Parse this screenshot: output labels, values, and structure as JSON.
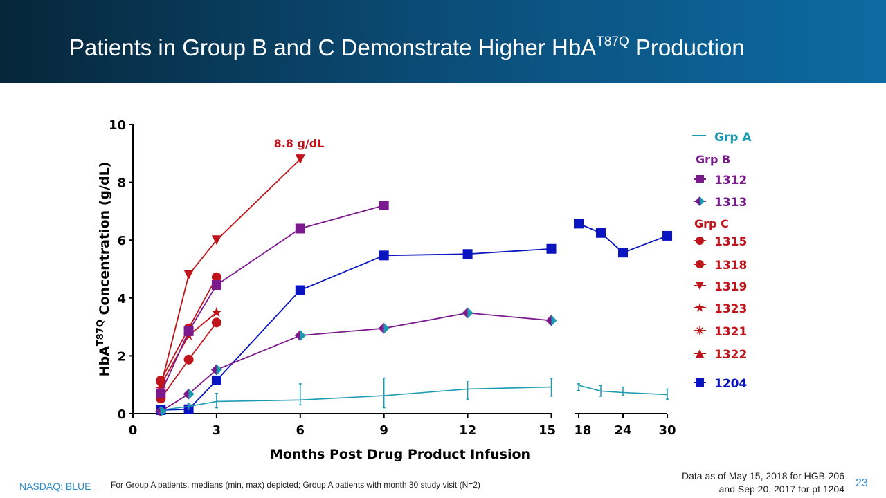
{
  "header": {
    "title_pre": "Patients in Group B and C Demonstrate Higher HbA",
    "title_sup": "T87Q",
    "title_post": " Production"
  },
  "footer": {
    "ticker": "NASDAQ: BLUE",
    "note": "For Group A patients, medians (min, max) depicted; Group A patients with month 30 study visit (N=2)",
    "data_line1": "Data as of May 15, 2018 for HGB-206",
    "data_line2": "and Sep 20, 2017 for pt 1204",
    "page": "23"
  },
  "chart_data": {
    "type": "line",
    "xlabel": "Months Post Drug Product Infusion",
    "ylabel_pre": "HbA",
    "ylabel_sup": "T87Q",
    "ylabel_post": " Concentration (g/dL)",
    "ylim": [
      0,
      10
    ],
    "yticks": [
      0,
      2,
      4,
      6,
      8,
      10
    ],
    "xticks": [
      0,
      3,
      6,
      9,
      12,
      15,
      18,
      24,
      30
    ],
    "x_axis_break": [
      15,
      18
    ],
    "annotation": {
      "text": "8.8 g/dL",
      "x": 6,
      "y": 8.8
    },
    "legend_groups": {
      "a": "Grp A",
      "b": "Grp B",
      "c": "Grp C"
    },
    "colors": {
      "grpA": "#1a9bb0",
      "grpB": "#7b1a8c",
      "grpC": "#c0141c",
      "p1204": "#0a14c0"
    },
    "series": [
      {
        "name": "Grp A",
        "color": "#1a9bb0",
        "marker": "errorbar",
        "x": [
          1,
          2,
          3,
          6,
          9,
          12,
          15,
          18,
          21,
          24,
          30
        ],
        "y": [
          0.12,
          0.25,
          0.42,
          0.47,
          0.62,
          0.85,
          0.92,
          0.98,
          0.78,
          0.73,
          0.66
        ],
        "min": [
          0.05,
          0.15,
          0.2,
          0.3,
          0.2,
          0.5,
          0.6,
          0.8,
          0.6,
          0.62,
          0.5
        ],
        "max": [
          0.2,
          0.35,
          0.7,
          1.03,
          1.23,
          1.1,
          1.22,
          1.03,
          0.97,
          0.92,
          0.85
        ]
      },
      {
        "name": "1312",
        "color": "#7b1a8c",
        "marker": "square",
        "x": [
          1,
          2,
          3,
          6,
          9
        ],
        "y": [
          0.7,
          2.85,
          4.45,
          6.4,
          7.2
        ]
      },
      {
        "name": "1313",
        "color": "#7b1a8c",
        "marker": "diamond",
        "x": [
          1,
          2,
          3,
          6,
          9,
          12,
          15
        ],
        "y": [
          0.08,
          0.68,
          1.52,
          2.7,
          2.95,
          3.48,
          3.22
        ]
      },
      {
        "name": "1315",
        "color": "#c0141c",
        "marker": "hexagon",
        "x": [
          1,
          2,
          3
        ],
        "y": [
          1.15,
          2.95,
          4.72
        ]
      },
      {
        "name": "1318",
        "color": "#c0141c",
        "marker": "circle",
        "x": [
          1,
          2,
          3
        ],
        "y": [
          0.52,
          1.87,
          3.15
        ]
      },
      {
        "name": "1319",
        "color": "#c0141c",
        "marker": "triangle-down",
        "x": [
          1,
          2,
          3,
          6
        ],
        "y": [
          0.95,
          4.8,
          6.0,
          8.8
        ]
      },
      {
        "name": "1323",
        "color": "#c0141c",
        "marker": "star",
        "x": [
          1,
          2,
          3
        ],
        "y": [
          1.0,
          2.7,
          3.5
        ]
      },
      {
        "name": "1321",
        "color": "#c0141c",
        "marker": "asterisk",
        "x": [
          1
        ],
        "y": [
          0.9
        ]
      },
      {
        "name": "1322",
        "color": "#c0141c",
        "marker": "triangle-up",
        "x": [
          1
        ],
        "y": [
          0.8
        ]
      },
      {
        "name": "1204",
        "color": "#0a14c0",
        "marker": "square",
        "x": [
          1,
          2,
          3,
          6,
          9,
          12,
          15,
          18,
          21,
          24,
          30
        ],
        "y": [
          0.12,
          0.15,
          1.15,
          4.27,
          5.47,
          5.52,
          5.7,
          6.57,
          6.25,
          5.57,
          6.15
        ]
      }
    ]
  }
}
